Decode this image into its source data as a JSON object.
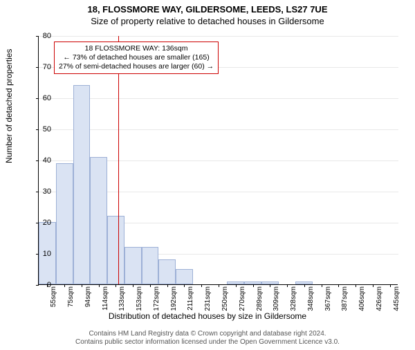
{
  "titles": {
    "line1": "18, FLOSSMORE WAY, GILDERSOME, LEEDS, LS27 7UE",
    "line2": "Size of property relative to detached houses in Gildersome"
  },
  "ylabel": "Number of detached properties",
  "xlabel": "Distribution of detached houses by size in Gildersome",
  "footer": {
    "line1": "Contains HM Land Registry data © Crown copyright and database right 2024.",
    "line2": "Contains public sector information licensed under the Open Government Licence v3.0."
  },
  "chart": {
    "type": "histogram",
    "ylim": [
      0,
      80
    ],
    "ytick_step": 10,
    "background_color": "#ffffff",
    "grid_color": "#e8e8e8",
    "bar_fill": "#dae3f3",
    "bar_border": "#9db0d6",
    "marker_line_color": "#cc0000",
    "marker_x_value": 136,
    "x_start": 55,
    "x_step": 19.5,
    "categories": [
      "55sqm",
      "75sqm",
      "94sqm",
      "114sqm",
      "133sqm",
      "153sqm",
      "172sqm",
      "192sqm",
      "211sqm",
      "231sqm",
      "250sqm",
      "270sqm",
      "289sqm",
      "309sqm",
      "328sqm",
      "348sqm",
      "367sqm",
      "387sqm",
      "406sqm",
      "426sqm",
      "445sqm"
    ],
    "values": [
      20,
      39,
      64,
      41,
      22,
      12,
      12,
      8,
      5,
      0,
      0,
      1,
      1,
      1,
      0,
      1,
      0,
      0,
      0,
      0,
      0
    ],
    "title_fontsize": 13,
    "label_fontsize": 12,
    "tick_fontsize": 11
  },
  "annotation": {
    "line1": "18 FLOSSMORE WAY: 136sqm",
    "line2": "← 73% of detached houses are smaller (165)",
    "line3": "27% of semi-detached houses are larger (60) →"
  }
}
